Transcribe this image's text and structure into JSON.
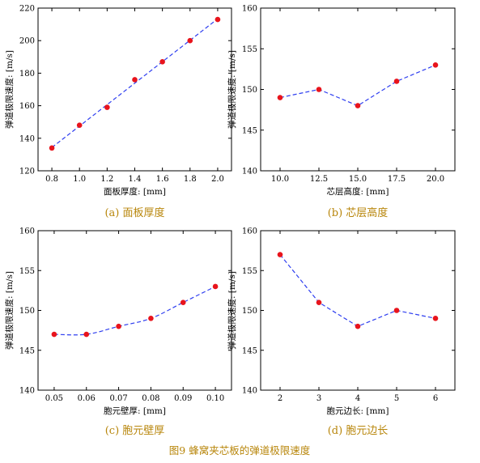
{
  "figure_caption": "图9 蜂窝夹芯板的弹道极限速度",
  "colors": {
    "point": "#e8141c",
    "line": "#2f3ff0",
    "caption": "#b8860b"
  },
  "chart_data": [
    {
      "type": "line",
      "caption": "(a) 面板厚度",
      "xlabel": "面板厚度: [mm]",
      "ylabel": "弹道极限速度: [m/s]",
      "x": [
        0.8,
        1.0,
        1.2,
        1.4,
        1.6,
        1.8,
        2.0
      ],
      "y": [
        134,
        148,
        159,
        176,
        187,
        200,
        213
      ],
      "xlim": [
        0.7,
        2.1
      ],
      "ylim": [
        120,
        220
      ],
      "xticks": [
        "0.8",
        "1.0",
        "1.2",
        "1.4",
        "1.6",
        "1.8",
        "2.0"
      ],
      "yticks": [
        "120",
        "140",
        "160",
        "180",
        "200",
        "220"
      ],
      "line_style": "linear fit, dashed"
    },
    {
      "type": "line",
      "caption": "(b) 芯层高度",
      "xlabel": "芯层高度: [mm]",
      "ylabel": "弹道极限速度: [m/s]",
      "x": [
        10.0,
        12.5,
        15.0,
        17.5,
        20.0
      ],
      "y": [
        149,
        150,
        148,
        151,
        153
      ],
      "xlim": [
        8.75,
        21.25
      ],
      "ylim": [
        140,
        160
      ],
      "xticks": [
        "10.0",
        "12.5",
        "15.0",
        "17.5",
        "20.0"
      ],
      "yticks": [
        "140",
        "145",
        "150",
        "155",
        "160"
      ],
      "line_style": "connected, dashed"
    },
    {
      "type": "line",
      "caption": "(c) 胞元壁厚",
      "xlabel": "胞元壁厚: [mm]",
      "ylabel": "弹道极限速度: [m/s]",
      "x": [
        0.05,
        0.06,
        0.07,
        0.08,
        0.09,
        0.1
      ],
      "y": [
        147,
        147,
        148,
        149,
        151,
        153
      ],
      "xlim": [
        0.045,
        0.105
      ],
      "ylim": [
        140,
        160
      ],
      "xticks": [
        "0.05",
        "0.06",
        "0.07",
        "0.08",
        "0.09",
        "0.10"
      ],
      "yticks": [
        "140",
        "145",
        "150",
        "155",
        "160"
      ],
      "line_style": "smooth, dashed"
    },
    {
      "type": "line",
      "caption": "(d) 胞元边长",
      "xlabel": "胞元边长: [mm]",
      "ylabel": "弹道极限速度: [m/s]",
      "x": [
        2,
        3,
        4,
        5,
        6
      ],
      "y": [
        157,
        151,
        148,
        150,
        149
      ],
      "xlim": [
        1.5,
        6.5
      ],
      "ylim": [
        140,
        160
      ],
      "xticks": [
        "2",
        "3",
        "4",
        "5",
        "6"
      ],
      "yticks": [
        "140",
        "145",
        "150",
        "155",
        "160"
      ],
      "line_style": "connected, dashed"
    }
  ]
}
